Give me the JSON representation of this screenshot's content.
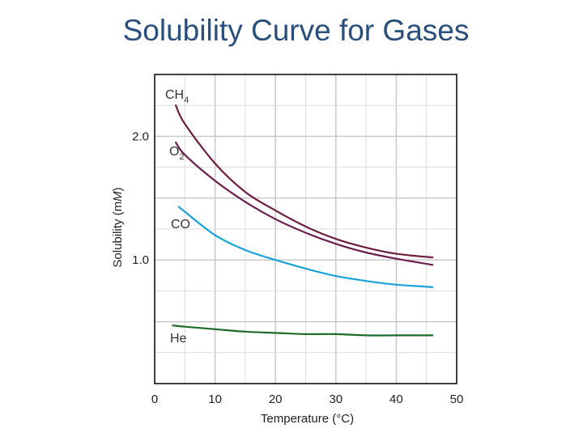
{
  "page": {
    "title": "Solubility Curve for Gases"
  },
  "chart_data": {
    "type": "line",
    "title": "Solubility Curve for Gases",
    "xlabel": "Temperature (°C)",
    "ylabel_prefix": "Solubility (m",
    "ylabel_unit": "M",
    "ylabel_suffix": ")",
    "xlim": [
      0,
      50
    ],
    "ylim": [
      0,
      2.5
    ],
    "x_ticks": [
      0,
      10,
      20,
      30,
      40,
      50
    ],
    "x_tick_labels": [
      "0",
      "10",
      "20",
      "30",
      "40",
      "50"
    ],
    "y_ticks": [
      1.0,
      2.0
    ],
    "y_tick_labels": [
      "1.0",
      "2.0"
    ],
    "grid": true,
    "legend": "inline labels near curve starts",
    "series": [
      {
        "name": "CH4",
        "label_main": "CH",
        "label_sub": "4",
        "color": "#6e1d43",
        "x": [
          3.5,
          5,
          10,
          15,
          20,
          25,
          30,
          35,
          40,
          46
        ],
        "y": [
          2.25,
          2.1,
          1.78,
          1.55,
          1.4,
          1.27,
          1.17,
          1.1,
          1.05,
          1.02
        ]
      },
      {
        "name": "O2",
        "label_main": "O",
        "label_sub": "2",
        "color": "#6a1f4f",
        "x": [
          3.5,
          5,
          10,
          15,
          20,
          25,
          30,
          35,
          40,
          46
        ],
        "y": [
          1.95,
          1.85,
          1.64,
          1.47,
          1.33,
          1.22,
          1.13,
          1.06,
          1.01,
          0.96
        ]
      },
      {
        "name": "CO",
        "label_main": "CO",
        "label_sub": "",
        "color": "#1aa3d8",
        "x": [
          4,
          5,
          10,
          15,
          20,
          25,
          30,
          35,
          40,
          46
        ],
        "y": [
          1.43,
          1.39,
          1.2,
          1.08,
          1.0,
          0.93,
          0.87,
          0.83,
          0.8,
          0.78
        ]
      },
      {
        "name": "He",
        "label_main": "He",
        "label_sub": "",
        "color": "#1f6a2a",
        "x": [
          3,
          5,
          10,
          15,
          20,
          25,
          30,
          35,
          40,
          46
        ],
        "y": [
          0.47,
          0.46,
          0.44,
          0.42,
          0.41,
          0.4,
          0.4,
          0.39,
          0.39,
          0.39
        ]
      }
    ]
  }
}
